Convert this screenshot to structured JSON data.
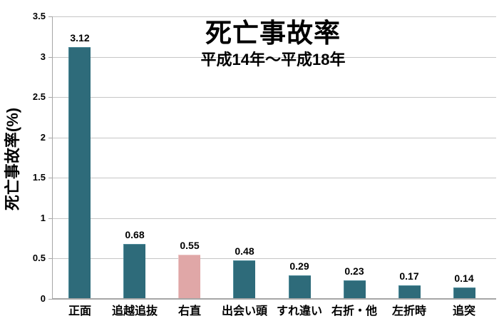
{
  "page": {
    "background": "#ffffff"
  },
  "chart_data": {
    "type": "bar",
    "title": "死亡事故率",
    "subtitle": "平成14年～平成18年",
    "ylabel": "死亡事故率(%)",
    "xlabel": "",
    "categories": [
      "正面",
      "追越追抜",
      "右直",
      "出会い頭",
      "すれ違い",
      "右折・他",
      "左折時",
      "追突"
    ],
    "values": [
      3.12,
      0.68,
      0.55,
      0.48,
      0.29,
      0.23,
      0.17,
      0.14
    ],
    "value_labels": [
      "3.12",
      "0.68",
      "0.55",
      "0.48",
      "0.29",
      "0.23",
      "0.17",
      "0.14"
    ],
    "ylim": [
      0,
      3.5
    ],
    "ytick_values": [
      0,
      0.5,
      1,
      1.5,
      2,
      2.5,
      3,
      3.5
    ],
    "ytick_labels": [
      "0",
      "0.5",
      "1",
      "1.5",
      "2",
      "2.5",
      "3",
      "3.5"
    ],
    "grid": true,
    "legend": "none",
    "highlight_index": 2,
    "colors": {
      "bar": "#2e6b7a",
      "bar_border": "#4d8a99",
      "highlight_bar": "#e0a7a7",
      "highlight_bar_border": "#ecc5c5",
      "gridline": "#c6c6c6",
      "axis": "#a6a6a6",
      "text": "#000000"
    }
  }
}
